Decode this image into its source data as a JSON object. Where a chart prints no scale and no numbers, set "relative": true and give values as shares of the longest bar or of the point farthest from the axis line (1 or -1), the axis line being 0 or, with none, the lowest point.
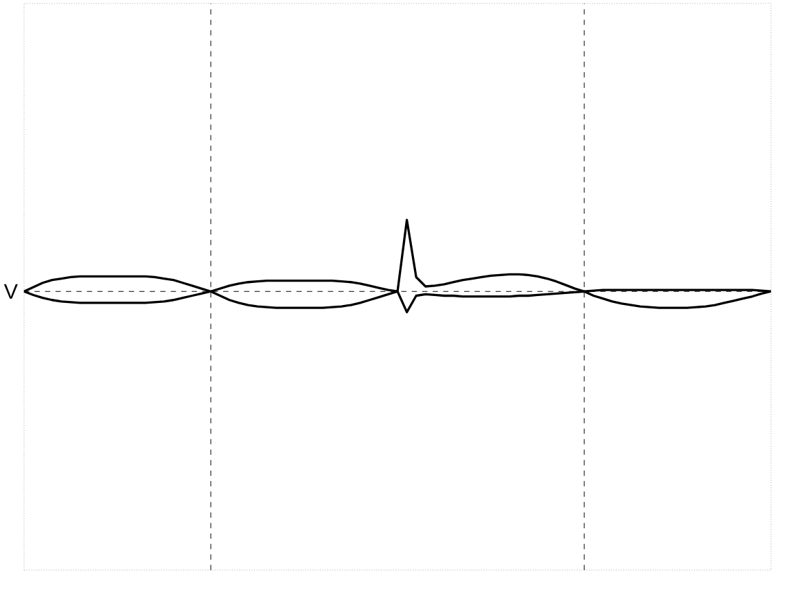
{
  "chart_data": {
    "type": "line",
    "relative": true,
    "ylabel": "V",
    "marker": "none",
    "line_style": "solid",
    "categories": [
      null,
      null,
      null,
      null,
      null,
      null,
      null,
      null,
      null,
      null,
      null,
      null,
      null,
      null,
      null,
      null,
      null,
      null,
      null,
      null,
      null,
      null,
      null,
      null,
      null,
      null,
      null,
      null,
      null,
      null,
      null,
      null,
      null,
      null,
      null,
      null,
      null,
      null,
      null,
      null,
      null,
      null,
      null,
      null,
      null,
      null,
      null,
      null,
      null,
      null,
      null,
      null,
      null,
      null,
      null,
      null,
      null,
      null,
      null,
      null,
      null,
      null,
      null,
      null,
      null,
      null,
      null,
      null,
      null,
      null,
      null,
      null,
      null,
      null,
      null,
      null,
      null,
      null,
      null,
      null,
      null
    ],
    "series": [
      {
        "color": "#000000",
        "values": [
          0,
          0.06,
          0.12,
          0.16,
          0.18,
          0.2,
          0.21,
          0.21,
          0.21,
          0.21,
          0.21,
          0.21,
          0.21,
          0.21,
          0.2,
          0.18,
          0.16,
          0.12,
          0.08,
          0.04,
          0,
          0.04,
          0.08,
          0.11,
          0.13,
          0.14,
          0.15,
          0.15,
          0.15,
          0.15,
          0.15,
          0.15,
          0.15,
          0.15,
          0.14,
          0.13,
          0.11,
          0.08,
          0.05,
          0.02,
          0,
          1,
          0.2,
          0.07,
          0.08,
          0.1,
          0.13,
          0.16,
          0.18,
          0.2,
          0.22,
          0.23,
          0.24,
          0.24,
          0.23,
          0.21,
          0.18,
          0.14,
          0.09,
          0.04,
          0,
          0.01,
          0.02,
          0.02,
          0.02,
          0.02,
          0.02,
          0.02,
          0.02,
          0.02,
          0.02,
          0.02,
          0.02,
          0.02,
          0.02,
          0.02,
          0.02,
          0.02,
          0.02,
          0.01,
          0
        ]
      },
      {
        "color": "#000000",
        "values": [
          0,
          -0.05,
          -0.09,
          -0.12,
          -0.14,
          -0.15,
          -0.16,
          -0.16,
          -0.16,
          -0.16,
          -0.16,
          -0.16,
          -0.16,
          -0.16,
          -0.15,
          -0.14,
          -0.12,
          -0.09,
          -0.06,
          -0.03,
          0,
          -0.06,
          -0.12,
          -0.16,
          -0.19,
          -0.21,
          -0.22,
          -0.23,
          -0.23,
          -0.23,
          -0.23,
          -0.23,
          -0.23,
          -0.22,
          -0.21,
          -0.19,
          -0.16,
          -0.12,
          -0.08,
          -0.04,
          0,
          -0.29,
          -0.06,
          -0.04,
          -0.05,
          -0.06,
          -0.06,
          -0.07,
          -0.07,
          -0.07,
          -0.07,
          -0.07,
          -0.07,
          -0.06,
          -0.06,
          -0.05,
          -0.04,
          -0.03,
          -0.02,
          -0.01,
          0,
          -0.06,
          -0.1,
          -0.14,
          -0.17,
          -0.19,
          -0.21,
          -0.22,
          -0.23,
          -0.23,
          -0.23,
          -0.23,
          -0.22,
          -0.21,
          -0.19,
          -0.16,
          -0.13,
          -0.1,
          -0.07,
          -0.03,
          0
        ]
      }
    ]
  }
}
